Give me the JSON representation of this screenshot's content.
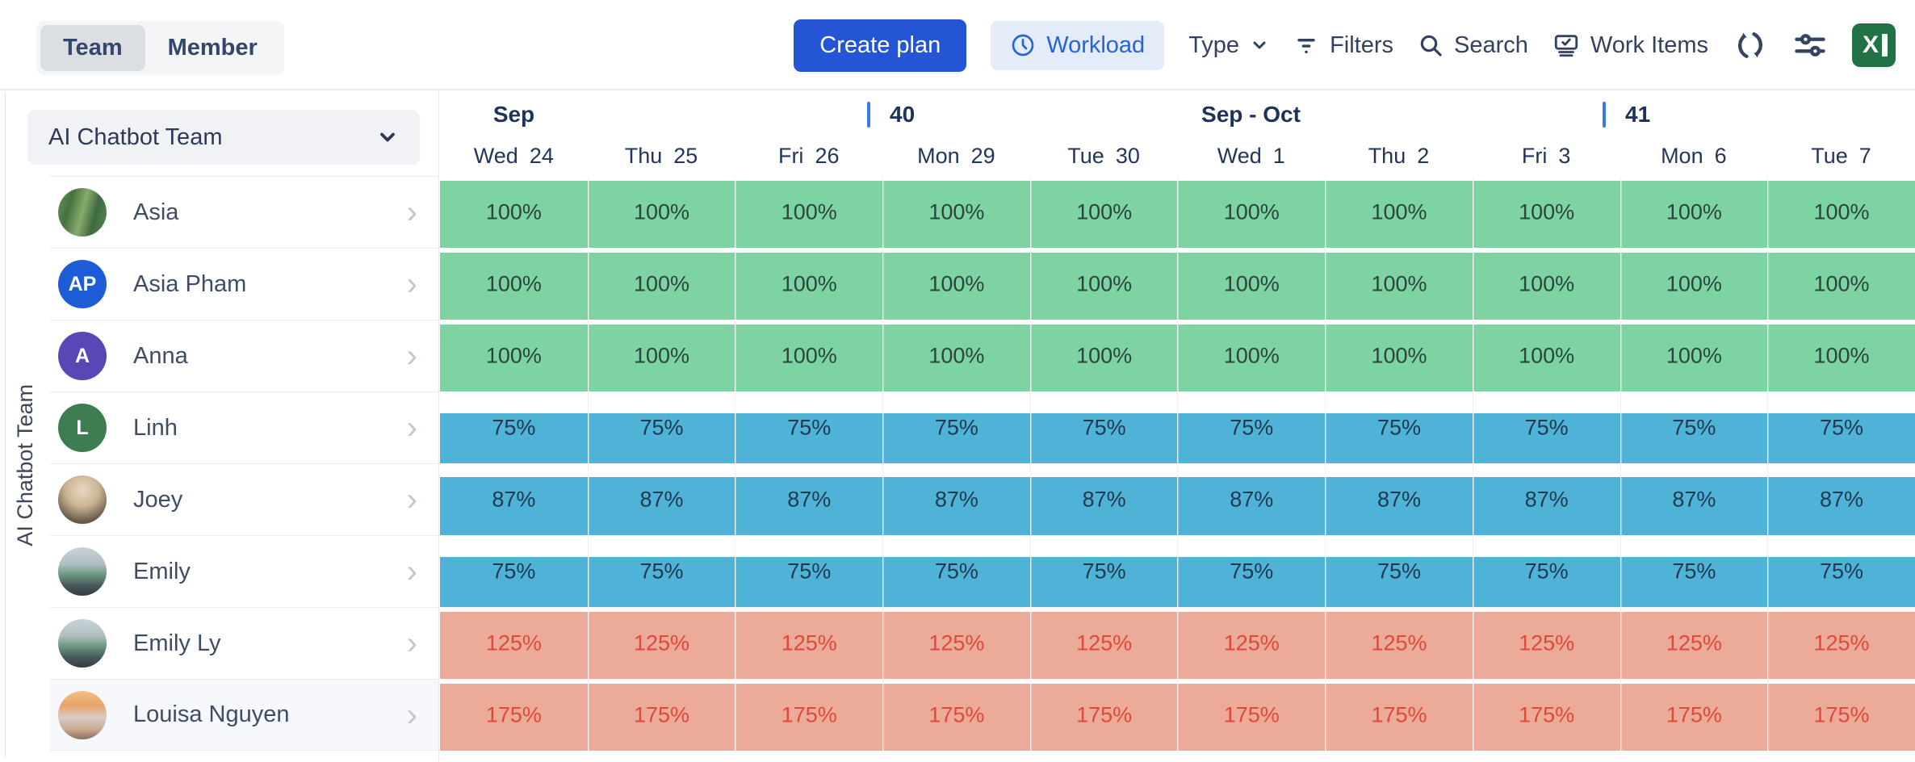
{
  "toolbar": {
    "view_toggle": {
      "options": [
        "Team",
        "Member"
      ],
      "selected": "Team"
    },
    "create_plan_label": "Create plan",
    "workload_label": "Workload",
    "type_label": "Type",
    "filters_label": "Filters",
    "search_label": "Search",
    "work_items_label": "Work Items",
    "icons": [
      "clock-icon",
      "chevron-down-icon",
      "filter-icon",
      "search-icon",
      "work-items-icon",
      "refresh-icon",
      "sliders-icon",
      "excel-export-icon"
    ],
    "excel_glyph": "X"
  },
  "sidebar": {
    "team_selector_value": "AI Chatbot Team",
    "vertical_label": "AI Chatbot Team"
  },
  "timeline": {
    "groups": [
      {
        "label": "Sep",
        "type": "month",
        "col": 0
      },
      {
        "label": "40",
        "type": "week",
        "col": 3
      },
      {
        "label": "Sep - Oct",
        "type": "month",
        "col": 5
      },
      {
        "label": "41",
        "type": "week",
        "col": 8
      }
    ],
    "days": [
      {
        "dow": "Wed",
        "date": "24"
      },
      {
        "dow": "Thu",
        "date": "25"
      },
      {
        "dow": "Fri",
        "date": "26"
      },
      {
        "dow": "Mon",
        "date": "29"
      },
      {
        "dow": "Tue",
        "date": "30"
      },
      {
        "dow": "Wed",
        "date": "1"
      },
      {
        "dow": "Thu",
        "date": "2"
      },
      {
        "dow": "Fri",
        "date": "3"
      },
      {
        "dow": "Mon",
        "date": "6"
      },
      {
        "dow": "Tue",
        "date": "7"
      }
    ]
  },
  "members": [
    {
      "name": "Asia",
      "avatar_type": "photo",
      "avatar_class": "photo-forest",
      "workload_pct": 100,
      "status": "full",
      "daily_values": [
        "100%",
        "100%",
        "100%",
        "100%",
        "100%",
        "100%",
        "100%",
        "100%",
        "100%",
        "100%"
      ]
    },
    {
      "name": "Asia Pham",
      "avatar_type": "initials",
      "initials": "AP",
      "avatar_color": "#1d5cd6",
      "workload_pct": 100,
      "status": "full",
      "daily_values": [
        "100%",
        "100%",
        "100%",
        "100%",
        "100%",
        "100%",
        "100%",
        "100%",
        "100%",
        "100%"
      ]
    },
    {
      "name": "Anna",
      "avatar_type": "initials",
      "initials": "A",
      "avatar_color": "#5847b6",
      "workload_pct": 100,
      "status": "full",
      "daily_values": [
        "100%",
        "100%",
        "100%",
        "100%",
        "100%",
        "100%",
        "100%",
        "100%",
        "100%",
        "100%"
      ]
    },
    {
      "name": "Linh",
      "avatar_type": "initials",
      "initials": "L",
      "avatar_color": "#3d7d51",
      "workload_pct": 75,
      "status": "under",
      "daily_values": [
        "75%",
        "75%",
        "75%",
        "75%",
        "75%",
        "75%",
        "75%",
        "75%",
        "75%",
        "75%"
      ]
    },
    {
      "name": "Joey",
      "avatar_type": "photo",
      "avatar_class": "photo-tan",
      "workload_pct": 87,
      "status": "under",
      "daily_values": [
        "87%",
        "87%",
        "87%",
        "87%",
        "87%",
        "87%",
        "87%",
        "87%",
        "87%",
        "87%"
      ]
    },
    {
      "name": "Emily",
      "avatar_type": "photo",
      "avatar_class": "photo-mountain",
      "workload_pct": 75,
      "status": "under",
      "daily_values": [
        "75%",
        "75%",
        "75%",
        "75%",
        "75%",
        "75%",
        "75%",
        "75%",
        "75%",
        "75%"
      ]
    },
    {
      "name": "Emily Ly",
      "avatar_type": "photo",
      "avatar_class": "photo-mountain",
      "workload_pct": 125,
      "status": "over",
      "daily_values": [
        "125%",
        "125%",
        "125%",
        "125%",
        "125%",
        "125%",
        "125%",
        "125%",
        "125%",
        "125%"
      ]
    },
    {
      "name": "Louisa Nguyen",
      "avatar_type": "photo",
      "avatar_class": "photo-sunset",
      "workload_pct": 175,
      "status": "over",
      "highlighted": true,
      "daily_values": [
        "175%",
        "175%",
        "175%",
        "175%",
        "175%",
        "175%",
        "175%",
        "175%",
        "175%",
        "175%"
      ]
    }
  ],
  "colors": {
    "accent_blue": "#2355d4",
    "chip_bg": "#e4ecfa",
    "chip_text": "#2563d9",
    "band_full": "#7ed3a2",
    "band_under": "#4fb3d8",
    "band_over": "#ecab99",
    "text_over": "#e0483a",
    "week_tick": "#3c78e8",
    "excel_green": "#217346"
  }
}
